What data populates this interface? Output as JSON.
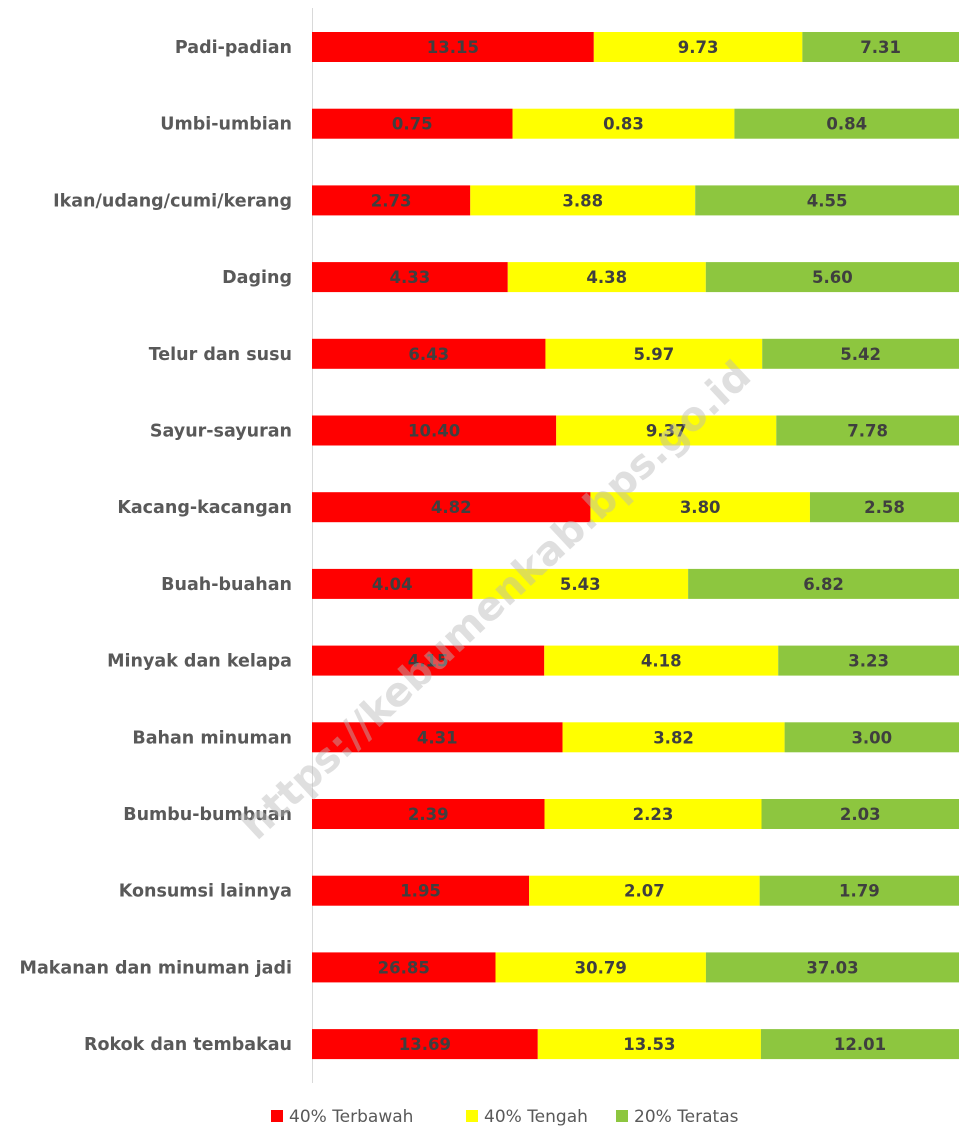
{
  "chart_data": {
    "type": "bar",
    "orientation": "horizontal",
    "stacking": "percent",
    "categories": [
      "Padi-padian",
      "Umbi-umbian",
      "Ikan/udang/cumi/kerang",
      "Daging",
      "Telur dan susu",
      "Sayur-sayuran",
      "Kacang-kacangan",
      "Buah-buahan",
      "Minyak dan kelapa",
      "Bahan minuman",
      "Bumbu-bumbuan",
      "Konsumsi lainnya",
      "Makanan dan minuman jadi",
      "Rokok dan tembakau"
    ],
    "series": [
      {
        "name": "40% Terbawah",
        "color": "#ff0000",
        "values": [
          13.15,
          0.75,
          2.73,
          4.33,
          6.43,
          10.4,
          4.82,
          4.04,
          4.15,
          4.31,
          2.39,
          1.95,
          26.85,
          13.69
        ]
      },
      {
        "name": "40% Tengah",
        "color": "#ffff00",
        "values": [
          9.73,
          0.83,
          3.88,
          4.38,
          5.97,
          9.37,
          3.8,
          5.43,
          4.18,
          3.82,
          2.23,
          2.07,
          30.79,
          13.53
        ]
      },
      {
        "name": "20% Teratas",
        "color": "#8dc63f",
        "values": [
          7.31,
          0.84,
          4.55,
          5.6,
          5.42,
          7.78,
          2.58,
          6.82,
          3.23,
          3.0,
          2.03,
          1.79,
          37.03,
          12.01
        ]
      }
    ],
    "value_decimals": 2,
    "legend_position": "bottom",
    "grid": false
  },
  "watermark": "https://kebumenkab.bps.go.id"
}
